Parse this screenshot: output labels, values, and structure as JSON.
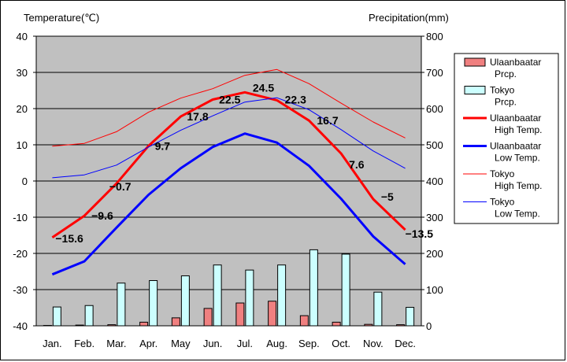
{
  "chart_data": {
    "type": "bar+line",
    "title": "",
    "left_axis_label": "Temperature(℃)",
    "right_axis_label": "Precipitation(mm)",
    "temp_range": [
      -40,
      40
    ],
    "temp_ticks": [
      40,
      30,
      20,
      10,
      0,
      -10,
      -20,
      -30,
      -40
    ],
    "precip_range": [
      0,
      800
    ],
    "precip_ticks": [
      800,
      700,
      600,
      500,
      400,
      300,
      200,
      100,
      0
    ],
    "categories": [
      "Jan.",
      "Feb.",
      "Mar.",
      "Apr.",
      "May",
      "Jun.",
      "Jul.",
      "Aug.",
      "Sep.",
      "Oct.",
      "Nov.",
      "Dec."
    ],
    "bar_series": [
      {
        "name": "Ulaanbaatar Prcp.",
        "color": "#f08080",
        "values": [
          1,
          2,
          3,
          10,
          22,
          48,
          63,
          68,
          28,
          10,
          4,
          3
        ]
      },
      {
        "name": "Tokyo Prcp.",
        "color": "#ccffff",
        "values": [
          52,
          56,
          118,
          125,
          138,
          168,
          154,
          168,
          210,
          198,
          93,
          51
        ]
      }
    ],
    "line_series": [
      {
        "name": "Ulaanbaatar High Temp.",
        "color": "#ff0000",
        "width": 3,
        "values": [
          -15.6,
          -9.6,
          -0.7,
          9.7,
          17.8,
          22.5,
          24.5,
          22.3,
          16.7,
          7.6,
          -5,
          -13.5
        ]
      },
      {
        "name": "Ulaanbaatar Low Temp.",
        "color": "#0000ff",
        "width": 3,
        "values": [
          -25.8,
          -22.2,
          -12.9,
          -3.8,
          3.5,
          9.4,
          13.1,
          10.6,
          4.2,
          -4.9,
          -15.3,
          -23.0
        ]
      },
      {
        "name": "Tokyo High Temp.",
        "color": "#ff0000",
        "width": 1,
        "values": [
          9.6,
          10.4,
          13.6,
          19.0,
          22.9,
          25.5,
          29.2,
          30.8,
          26.9,
          21.5,
          16.3,
          11.9
        ]
      },
      {
        "name": "Tokyo Low Temp.",
        "color": "#0000ff",
        "width": 1,
        "values": [
          0.9,
          1.7,
          4.4,
          9.4,
          14.0,
          18.0,
          21.8,
          23.0,
          19.7,
          14.2,
          8.3,
          3.5
        ]
      }
    ],
    "data_labels": [
      "−15.6",
      "−9.6",
      "−0.7",
      "9.7",
      "17.8",
      "22.5",
      "24.5",
      "22.3",
      "16.7",
      "7.6",
      "−5",
      "−13.5"
    ],
    "legend": [
      {
        "line1": "Ulaanbaatar",
        "line2": "Prcp.",
        "kind": "bar",
        "color": "#f08080"
      },
      {
        "line1": "Tokyo",
        "line2": "Prcp.",
        "kind": "bar",
        "color": "#ccffff"
      },
      {
        "line1": "Ulaanbaatar",
        "line2": "High Temp.",
        "kind": "line",
        "color": "#ff0000",
        "width": 3
      },
      {
        "line1": "Ulaanbaatar",
        "line2": "Low Temp.",
        "kind": "line",
        "color": "#0000ff",
        "width": 3
      },
      {
        "line1": "Tokyo",
        "line2": "High Temp.",
        "kind": "line",
        "color": "#ff0000",
        "width": 1
      },
      {
        "line1": "Tokyo",
        "line2": "Low Temp.",
        "kind": "line",
        "color": "#0000ff",
        "width": 1
      }
    ],
    "plot_bg": "#c0c0c0",
    "grid": true
  }
}
